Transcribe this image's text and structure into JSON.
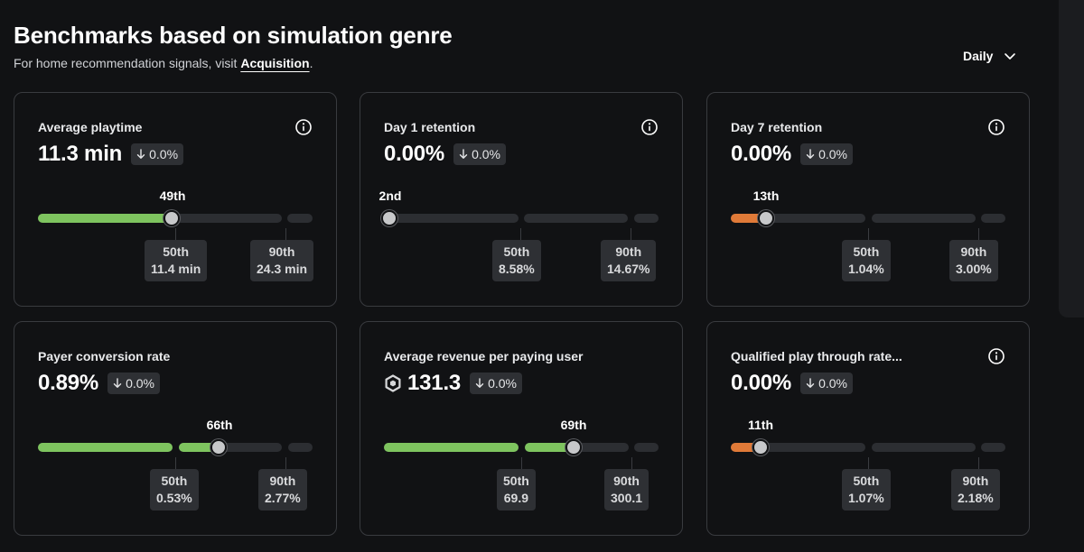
{
  "header": {
    "title": "Benchmarks based on simulation genre",
    "subtitle_prefix": "For home recommendation signals, visit ",
    "subtitle_link": "Acquisition",
    "subtitle_suffix": "."
  },
  "period_selector": {
    "value": "Daily"
  },
  "colors": {
    "green": "#7ec45f",
    "orange": "#e07a38",
    "track": "#2c2e32",
    "background": "#111214"
  },
  "cards": [
    {
      "name": "Average playtime",
      "value": "11.3 min",
      "delta": "0.0%",
      "percentile_label": "49th",
      "percentile": 49,
      "p50": {
        "label": "50th",
        "value": "11.4 min"
      },
      "p90": {
        "label": "90th",
        "value": "24.3 min"
      }
    },
    {
      "name": "Day 1 retention",
      "value": "0.00%",
      "delta": "0.0%",
      "percentile_label": "2nd",
      "percentile": 2,
      "p50": {
        "label": "50th",
        "value": "8.58%"
      },
      "p90": {
        "label": "90th",
        "value": "14.67%"
      }
    },
    {
      "name": "Day 7 retention",
      "value": "0.00%",
      "delta": "0.0%",
      "percentile_label": "13th",
      "percentile": 13,
      "p50": {
        "label": "50th",
        "value": "1.04%"
      },
      "p90": {
        "label": "90th",
        "value": "3.00%"
      }
    },
    {
      "name": "Payer conversion rate",
      "value": "0.89%",
      "delta": "0.0%",
      "percentile_label": "66th",
      "percentile": 66,
      "p50": {
        "label": "50th",
        "value": "0.53%"
      },
      "p90": {
        "label": "90th",
        "value": "2.77%"
      }
    },
    {
      "name": "Average revenue per paying user",
      "value": "131.3",
      "value_icon": "robux-icon",
      "delta": "0.0%",
      "percentile_label": "69th",
      "percentile": 69,
      "p50": {
        "label": "50th",
        "value": "69.9"
      },
      "p90": {
        "label": "90th",
        "value": "300.1"
      }
    },
    {
      "name": "Qualified play through rate...",
      "value": "0.00%",
      "delta": "0.0%",
      "percentile_label": "11th",
      "percentile": 11,
      "p50": {
        "label": "50th",
        "value": "1.07%"
      },
      "p90": {
        "label": "90th",
        "value": "2.18%"
      }
    }
  ]
}
